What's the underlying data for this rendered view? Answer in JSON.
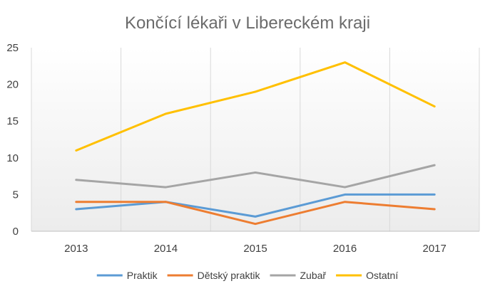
{
  "chart_data": {
    "type": "line",
    "title": "Končící lékaři v Libereckém kraji",
    "xlabel": "",
    "ylabel": "",
    "categories": [
      "2013",
      "2014",
      "2015",
      "2016",
      "2017"
    ],
    "ylim": [
      0,
      25
    ],
    "yticks": [
      "0",
      "5",
      "10",
      "15",
      "20",
      "25"
    ],
    "grid": "vertical",
    "legend_position": "bottom",
    "series": [
      {
        "name": "Praktik",
        "color": "#5b9bd5",
        "values": [
          3,
          4,
          2,
          5,
          5
        ]
      },
      {
        "name": "Dětský praktik",
        "color": "#ed7d31",
        "values": [
          4,
          4,
          1,
          4,
          3
        ]
      },
      {
        "name": "Zubař",
        "color": "#a5a5a5",
        "values": [
          7,
          6,
          8,
          6,
          9
        ]
      },
      {
        "name": "Ostatní",
        "color": "#ffc000",
        "values": [
          11,
          16,
          19,
          23,
          17
        ]
      }
    ]
  }
}
